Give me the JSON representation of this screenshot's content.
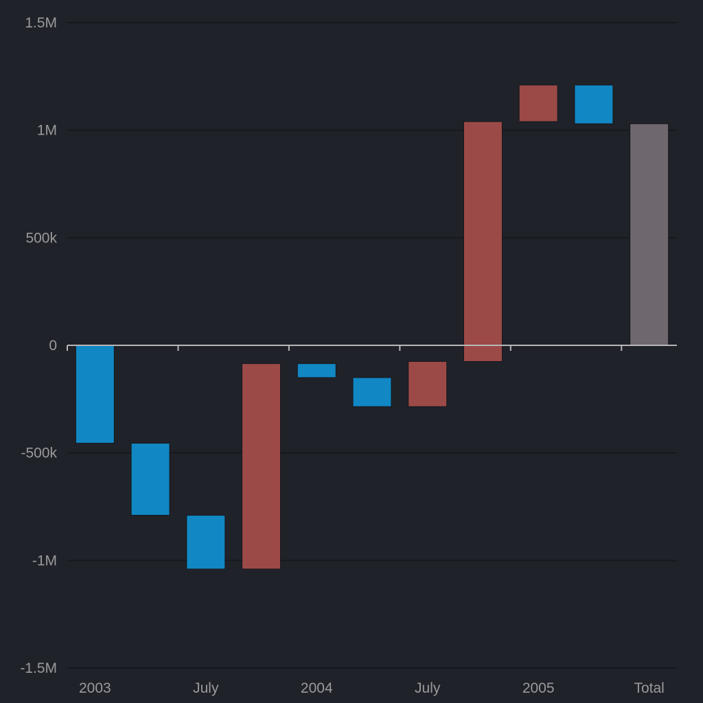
{
  "chart_data": {
    "type": "bar",
    "subtype": "waterfall",
    "title": "",
    "xlabel": "",
    "ylabel": "",
    "ylim": [
      -1500000,
      1500000
    ],
    "y_ticks": [
      {
        "value": 1500000,
        "label": "1.5M"
      },
      {
        "value": 1000000,
        "label": "1M"
      },
      {
        "value": 500000,
        "label": "500k"
      },
      {
        "value": 0,
        "label": "0"
      },
      {
        "value": -500000,
        "label": "-500k"
      },
      {
        "value": -1000000,
        "label": "-1M"
      },
      {
        "value": -1500000,
        "label": "-1.5M"
      }
    ],
    "x_tick_labels": [
      {
        "index": 0,
        "label": "2003"
      },
      {
        "index": 2,
        "label": "July"
      },
      {
        "index": 4,
        "label": "2004"
      },
      {
        "index": 6,
        "label": "July"
      },
      {
        "index": 8,
        "label": "2005"
      },
      {
        "index": 10,
        "label": "Total"
      }
    ],
    "bars": [
      {
        "start": 0,
        "end": -455000,
        "kind": "decrease"
      },
      {
        "start": -455000,
        "end": -790000,
        "kind": "decrease"
      },
      {
        "start": -790000,
        "end": -1040000,
        "kind": "decrease"
      },
      {
        "start": -1040000,
        "end": -85000,
        "kind": "increase"
      },
      {
        "start": -85000,
        "end": -150000,
        "kind": "decrease"
      },
      {
        "start": -150000,
        "end": -285000,
        "kind": "decrease"
      },
      {
        "start": -285000,
        "end": -75000,
        "kind": "increase"
      },
      {
        "start": -75000,
        "end": 1040000,
        "kind": "increase"
      },
      {
        "start": 1040000,
        "end": 1210000,
        "kind": "increase"
      },
      {
        "start": 1210000,
        "end": 1030000,
        "kind": "decrease"
      },
      {
        "start": 0,
        "end": 1030000,
        "kind": "total"
      }
    ],
    "grid": true,
    "colors": {
      "background": "#20222a",
      "increase": "#9c4a48",
      "decrease": "#1187c4",
      "total": "#6f676e",
      "grid": "#17181c",
      "axis": "#b8b8b8",
      "text": "#9a9a9a"
    }
  }
}
